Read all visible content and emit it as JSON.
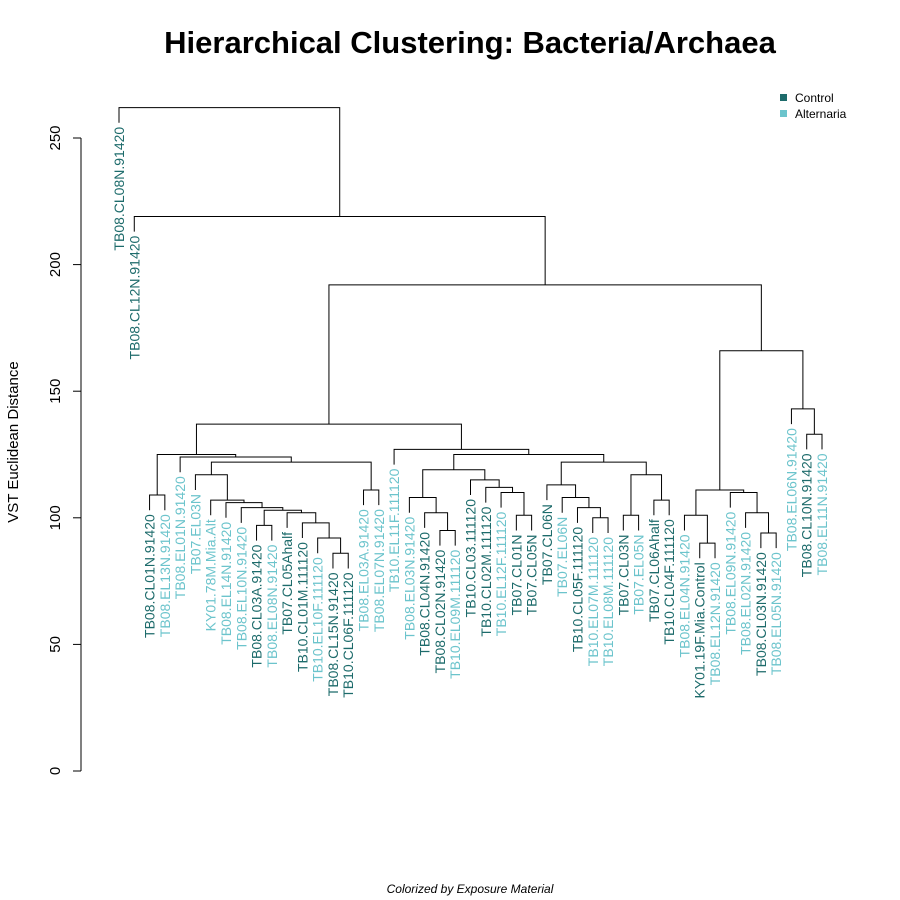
{
  "chart_data": {
    "type": "dendrogram",
    "title": "Hierarchical Clustering: Bacteria/Archaea",
    "ylabel": "VST Euclidean Distance",
    "caption": "Colorized by Exposure Material",
    "ylim": [
      0,
      260
    ],
    "yticks": [
      0,
      50,
      100,
      150,
      200,
      250
    ],
    "legend_position": "top-right",
    "legend": [
      {
        "label": "Control",
        "color": "#1d6b6b"
      },
      {
        "label": "Alternaria",
        "color": "#6cc4cc"
      }
    ],
    "leaves": [
      {
        "label": "TB08.CL08N.91420",
        "group": "Control"
      },
      {
        "label": "TB08.CL12N.91420",
        "group": "Control"
      },
      {
        "label": "TB08.CL01N.91420",
        "group": "Control"
      },
      {
        "label": "TB08.EL13N.91420",
        "group": "Alternaria"
      },
      {
        "label": "TB08.EL01N.91420",
        "group": "Alternaria"
      },
      {
        "label": "TB07.EL03N",
        "group": "Alternaria"
      },
      {
        "label": "KY01.78M.Mia.Alt",
        "group": "Alternaria"
      },
      {
        "label": "TB08.EL14N.91420",
        "group": "Alternaria"
      },
      {
        "label": "TB08.EL10N.91420",
        "group": "Alternaria"
      },
      {
        "label": "TB08.CL03A.91420",
        "group": "Control"
      },
      {
        "label": "TB08.EL08N.91420",
        "group": "Alternaria"
      },
      {
        "label": "TB07.CL05Ahalf",
        "group": "Control"
      },
      {
        "label": "TB10.CL01M.111120",
        "group": "Control"
      },
      {
        "label": "TB10.EL10F.111120",
        "group": "Alternaria"
      },
      {
        "label": "TB08.CL15N.91420",
        "group": "Control"
      },
      {
        "label": "TB10.CL06F.111120",
        "group": "Control"
      },
      {
        "label": "TB08.EL03A.91420",
        "group": "Alternaria"
      },
      {
        "label": "TB08.EL07N.91420",
        "group": "Alternaria"
      },
      {
        "label": "TB10.EL11F.111120",
        "group": "Alternaria"
      },
      {
        "label": "TB08.EL03N.91420",
        "group": "Alternaria"
      },
      {
        "label": "TB08.CL04N.91420",
        "group": "Control"
      },
      {
        "label": "TB08.CL02N.91420",
        "group": "Control"
      },
      {
        "label": "TB10.EL09M.111120",
        "group": "Alternaria"
      },
      {
        "label": "TB10.CL03.111120",
        "group": "Control"
      },
      {
        "label": "TB10.CL02M.111120",
        "group": "Control"
      },
      {
        "label": "TB10.EL12F.111120",
        "group": "Alternaria"
      },
      {
        "label": "TB07.CL01N",
        "group": "Control"
      },
      {
        "label": "TB07.CL05N",
        "group": "Control"
      },
      {
        "label": "TB07.CL06N",
        "group": "Control"
      },
      {
        "label": "TB07.EL06N",
        "group": "Alternaria"
      },
      {
        "label": "TB10.CL05F.111120",
        "group": "Control"
      },
      {
        "label": "TB10.EL07M.111120",
        "group": "Alternaria"
      },
      {
        "label": "TB10.EL08M.111120",
        "group": "Alternaria"
      },
      {
        "label": "TB07.CL03N",
        "group": "Control"
      },
      {
        "label": "TB07.EL05N",
        "group": "Alternaria"
      },
      {
        "label": "TB07.CL06Ahalf",
        "group": "Control"
      },
      {
        "label": "TB10.CL04F.111120",
        "group": "Control"
      },
      {
        "label": "TB08.EL04N.91420",
        "group": "Alternaria"
      },
      {
        "label": "KY01.19F.Mia.Control",
        "group": "Control"
      },
      {
        "label": "TB08.EL12N.91420",
        "group": "Alternaria"
      },
      {
        "label": "TB08.EL09N.91420",
        "group": "Alternaria"
      },
      {
        "label": "TB08.EL02N.91420",
        "group": "Alternaria"
      },
      {
        "label": "TB08.CL03N.91420",
        "group": "Control"
      },
      {
        "label": "TB08.EL05N.91420",
        "group": "Alternaria"
      },
      {
        "label": "TB08.EL06N.91420",
        "group": "Alternaria"
      },
      {
        "label": "TB08.CL10N.91420",
        "group": "Control"
      },
      {
        "label": "TB08.EL11N.91420",
        "group": "Alternaria"
      }
    ],
    "merges": [
      {
        "left": 2,
        "right": 3,
        "height": 109
      },
      {
        "left": 14,
        "right": 15,
        "height": 86
      },
      {
        "left": 13,
        "right": "m1",
        "height": 92
      },
      {
        "left": 12,
        "right": "m2",
        "height": 98
      },
      {
        "left": 11,
        "right": "m3",
        "height": 102
      },
      {
        "left": 9,
        "right": 10,
        "height": 97
      },
      {
        "left": "m5",
        "right": "m4",
        "height": 103
      },
      {
        "left": 8,
        "right": "m6",
        "height": 104
      },
      {
        "left": 7,
        "right": "m7",
        "height": 106
      },
      {
        "left": 6,
        "right": "m8",
        "height": 107
      },
      {
        "left": 5,
        "right": "m9",
        "height": 117
      },
      {
        "left": 16,
        "right": 17,
        "height": 111
      },
      {
        "left": "m10",
        "right": "m11",
        "height": 122
      },
      {
        "left": 4,
        "right": "m12",
        "height": 124
      },
      {
        "left": "m0",
        "right": "m13",
        "height": 125
      },
      {
        "left": 21,
        "right": 22,
        "height": 95
      },
      {
        "left": 20,
        "right": "m15",
        "height": 102
      },
      {
        "left": 19,
        "right": "m16",
        "height": 108
      },
      {
        "left": 26,
        "right": 27,
        "height": 101
      },
      {
        "left": 25,
        "right": "m18",
        "height": 110
      },
      {
        "left": 24,
        "right": "m19",
        "height": 112
      },
      {
        "left": 23,
        "right": "m20",
        "height": 115
      },
      {
        "left": "m17",
        "right": "m21",
        "height": 119
      },
      {
        "left": 31,
        "right": 32,
        "height": 100
      },
      {
        "left": 30,
        "right": "m23",
        "height": 104
      },
      {
        "left": 29,
        "right": "m24",
        "height": 108
      },
      {
        "left": 28,
        "right": "m25",
        "height": 113
      },
      {
        "left": 33,
        "right": 34,
        "height": 101
      },
      {
        "left": 35,
        "right": 36,
        "height": 107
      },
      {
        "left": "m27",
        "right": "m28",
        "height": 117
      },
      {
        "left": "m26",
        "right": "m29",
        "height": 122
      },
      {
        "left": "m22",
        "right": "m30",
        "height": 125
      },
      {
        "left": 18,
        "right": "m31",
        "height": 127
      },
      {
        "left": "m14",
        "right": "m32",
        "height": 137
      },
      {
        "left": 38,
        "right": 39,
        "height": 90
      },
      {
        "left": 37,
        "right": "m34",
        "height": 101
      },
      {
        "left": 42,
        "right": 43,
        "height": 94
      },
      {
        "left": 41,
        "right": "m36",
        "height": 102
      },
      {
        "left": 40,
        "right": "m37",
        "height": 110
      },
      {
        "left": "m35",
        "right": "m38",
        "height": 111
      },
      {
        "left": 45,
        "right": 46,
        "height": 133
      },
      {
        "left": 44,
        "right": "m40",
        "height": 143
      },
      {
        "left": "m39",
        "right": "m41",
        "height": 166
      },
      {
        "left": "m33",
        "right": "m42",
        "height": 192
      },
      {
        "left": 1,
        "right": "m43",
        "height": 219
      },
      {
        "left": 0,
        "right": "m44",
        "height": 262
      }
    ]
  }
}
